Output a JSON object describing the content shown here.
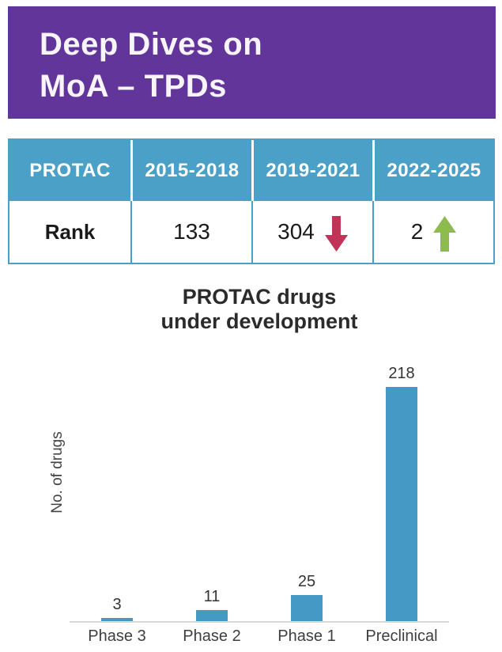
{
  "banner": {
    "title_line1": "Deep Dives on",
    "title_line2": "MoA – TPDs"
  },
  "table": {
    "columns": [
      "PROTAC",
      "2015-2018",
      "2019-2021",
      "2022-2025"
    ],
    "row_label": "Rank",
    "values": [
      "133",
      "304",
      "2"
    ],
    "trends": [
      "none",
      "down",
      "up"
    ]
  },
  "chart_data": {
    "type": "bar",
    "title": "PROTAC drugs under development",
    "title_lines": [
      "PROTAC drugs",
      "under development"
    ],
    "categories": [
      "Phase 3",
      "Phase 2",
      "Phase 1",
      "Preclinical"
    ],
    "values": [
      3,
      11,
      25,
      218
    ],
    "xlabel": "",
    "ylabel": "No. of drugs",
    "ylim": [
      0,
      230
    ],
    "grid": false,
    "legend": false,
    "value_labels": true,
    "bar_color": "#449AC5"
  },
  "colors": {
    "banner_purple": "#613599",
    "table_teal": "#4AA0C6",
    "bar_teal": "#449AC5",
    "trend_down_red": "#C23358",
    "trend_up_green": "#8EBB4D",
    "axis_gray": "#D9D9D9"
  }
}
